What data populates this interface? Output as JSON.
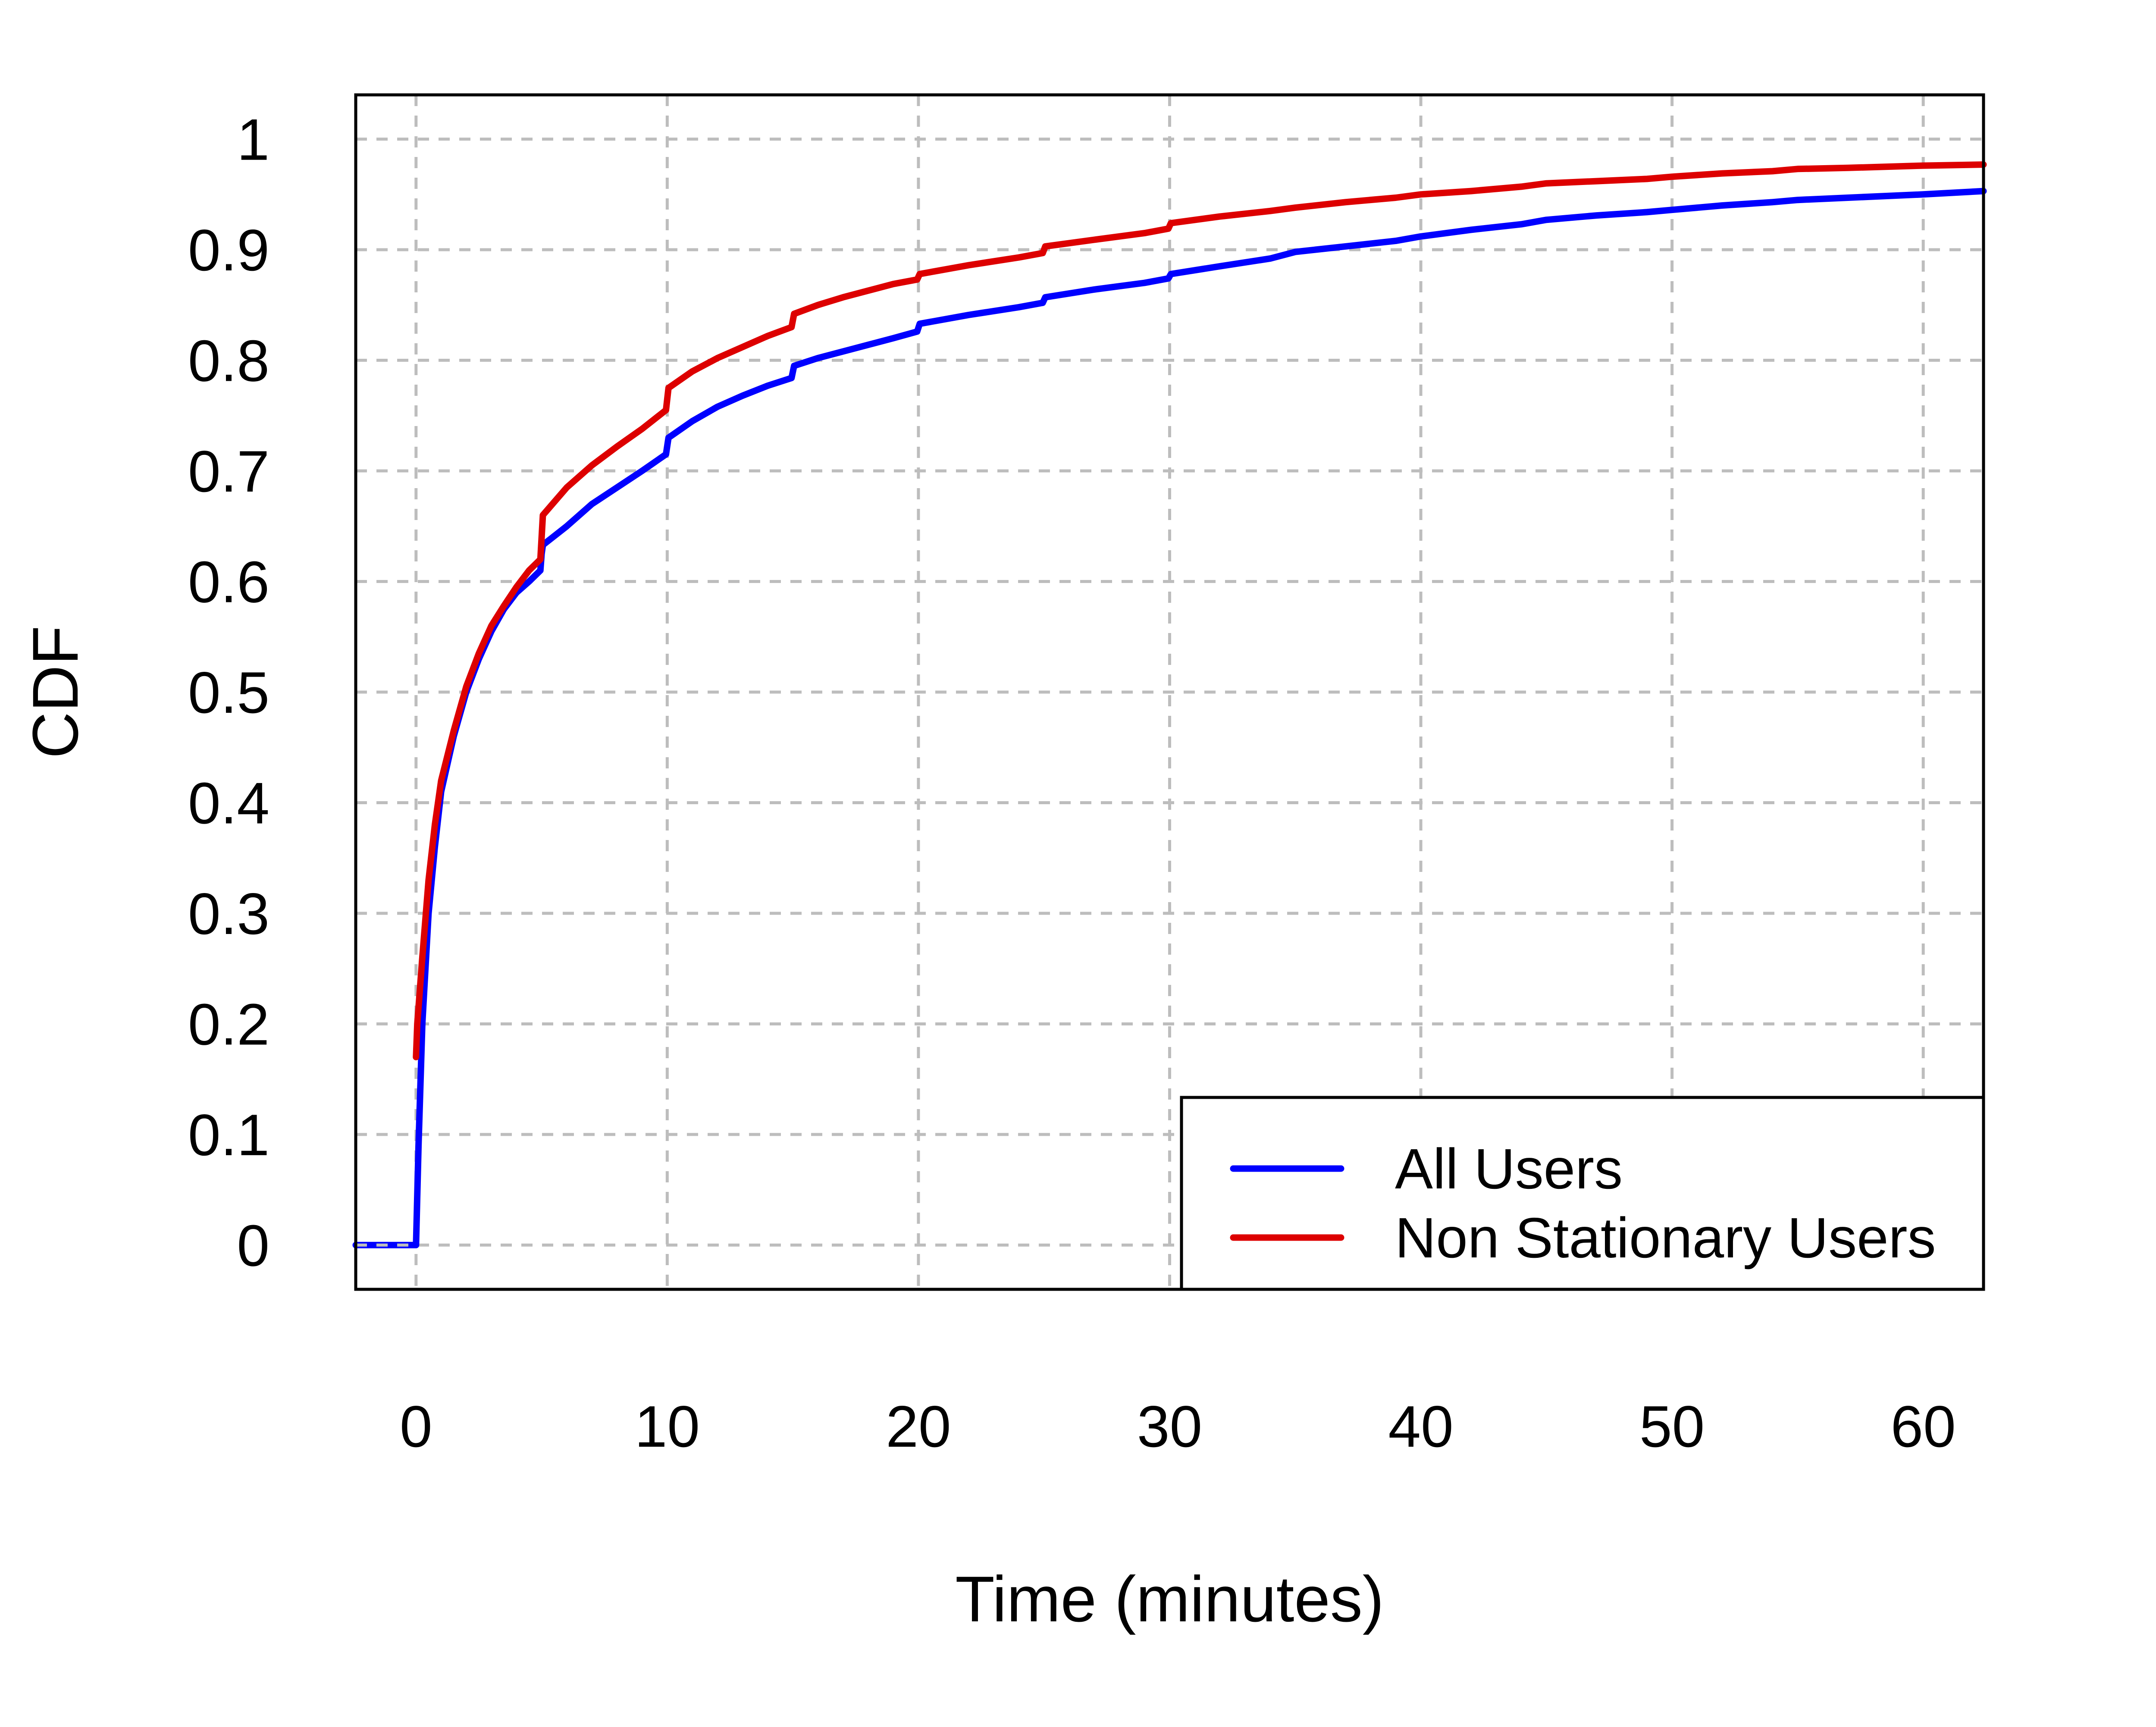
{
  "chart_data": {
    "type": "line",
    "xlabel": "Time (minutes)",
    "ylabel": "CDF",
    "xlim": [
      -2.4,
      62.4
    ],
    "ylim": [
      -0.04,
      1.04
    ],
    "xticks": [
      "0",
      "10",
      "20",
      "30",
      "40",
      "50",
      "60"
    ],
    "yticks": [
      "0",
      "0.1",
      "0.2",
      "0.3",
      "0.4",
      "0.5",
      "0.6",
      "0.7",
      "0.8",
      "0.9",
      "1"
    ],
    "grid": true,
    "legend": {
      "position": "bottom-right",
      "entries": [
        "All Users",
        "Non Stationary Users"
      ]
    },
    "series": [
      {
        "name": "All Users",
        "color": "#0000ff",
        "x": [
          -2.4,
          0,
          0.1,
          0.25,
          0.5,
          0.75,
          1,
          1.5,
          2,
          2.5,
          3,
          3.5,
          4,
          4.5,
          4.95,
          5.0,
          5.05,
          6,
          7,
          8,
          9,
          9.95,
          10.05,
          11,
          12,
          13,
          14,
          14.95,
          15.05,
          16,
          17,
          18,
          19,
          19.95,
          20.05,
          22,
          24,
          24.95,
          25.05,
          27,
          29,
          29.95,
          30.05,
          32,
          34,
          35,
          37,
          39,
          40,
          42,
          44,
          45,
          47,
          49,
          50,
          52,
          54,
          55,
          57,
          60,
          62.4
        ],
        "values": [
          0,
          0,
          0.09,
          0.2,
          0.3,
          0.36,
          0.41,
          0.46,
          0.5,
          0.53,
          0.555,
          0.575,
          0.59,
          0.6,
          0.61,
          0.625,
          0.633,
          0.65,
          0.67,
          0.685,
          0.7,
          0.715,
          0.73,
          0.745,
          0.758,
          0.768,
          0.777,
          0.784,
          0.795,
          0.802,
          0.808,
          0.814,
          0.82,
          0.826,
          0.833,
          0.841,
          0.848,
          0.852,
          0.857,
          0.864,
          0.87,
          0.874,
          0.878,
          0.885,
          0.892,
          0.898,
          0.903,
          0.908,
          0.912,
          0.918,
          0.923,
          0.927,
          0.931,
          0.934,
          0.936,
          0.94,
          0.943,
          0.945,
          0.947,
          0.95,
          0.953
        ]
      },
      {
        "name": "Non Stationary Users",
        "color": "#dd0000",
        "x": [
          0,
          0.05,
          0.25,
          0.5,
          0.75,
          1,
          1.5,
          2,
          2.5,
          3,
          3.5,
          4,
          4.5,
          4.95,
          5.0,
          5.05,
          6,
          7,
          8,
          9,
          9.95,
          10.05,
          11,
          12,
          13,
          14,
          14.95,
          15.05,
          16,
          17,
          18,
          19,
          19.95,
          20.05,
          22,
          24,
          24.95,
          25.05,
          27,
          29,
          29.95,
          30.05,
          32,
          34,
          35,
          37,
          39,
          40,
          42,
          44,
          45,
          47,
          49,
          50,
          52,
          54,
          55,
          57,
          60,
          62.4
        ],
        "values": [
          0.17,
          0.2,
          0.26,
          0.33,
          0.38,
          0.42,
          0.465,
          0.505,
          0.535,
          0.56,
          0.578,
          0.595,
          0.61,
          0.62,
          0.64,
          0.66,
          0.685,
          0.705,
          0.722,
          0.738,
          0.755,
          0.775,
          0.79,
          0.802,
          0.812,
          0.822,
          0.83,
          0.842,
          0.85,
          0.857,
          0.863,
          0.869,
          0.873,
          0.878,
          0.886,
          0.893,
          0.897,
          0.903,
          0.909,
          0.915,
          0.919,
          0.924,
          0.93,
          0.935,
          0.938,
          0.943,
          0.947,
          0.95,
          0.953,
          0.957,
          0.96,
          0.962,
          0.964,
          0.966,
          0.969,
          0.971,
          0.973,
          0.974,
          0.976,
          0.977
        ]
      }
    ]
  }
}
